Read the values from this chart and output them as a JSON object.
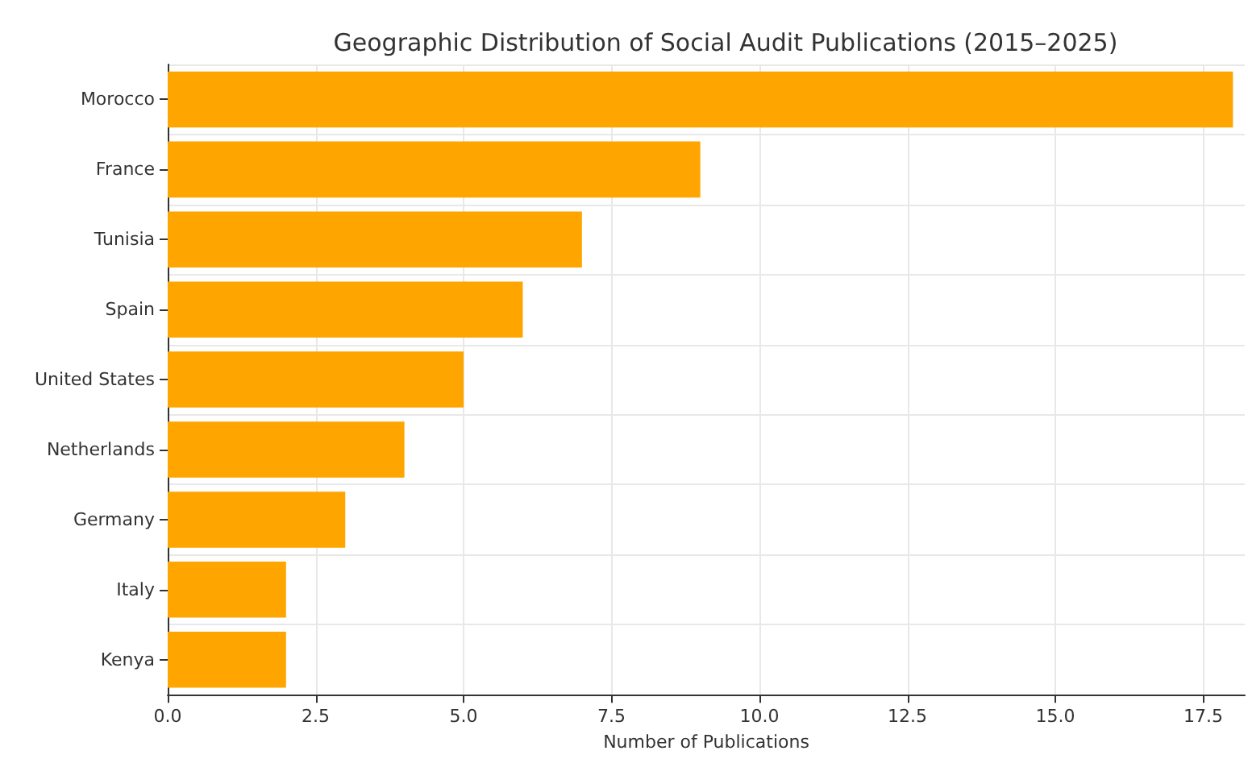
{
  "chart_data": {
    "type": "bar",
    "orientation": "horizontal",
    "title": "Geographic Distribution of Social Audit Publications (2015–2025)",
    "xlabel": "Number of Publications",
    "categories": [
      "Morocco",
      "France",
      "Tunisia",
      "Spain",
      "United States",
      "Netherlands",
      "Germany",
      "Italy",
      "Kenya"
    ],
    "values": [
      18,
      9,
      7,
      6,
      5,
      4,
      3,
      2,
      2
    ],
    "color": "#ffa500",
    "xlim": [
      0,
      18.2
    ],
    "xticks": [
      {
        "value": 0,
        "label": "0.0"
      },
      {
        "value": 2.5,
        "label": "2.5"
      },
      {
        "value": 5,
        "label": "5.0"
      },
      {
        "value": 7.5,
        "label": "7.5"
      },
      {
        "value": 10,
        "label": "10.0"
      },
      {
        "value": 12.5,
        "label": "12.5"
      },
      {
        "value": 15,
        "label": "15.0"
      },
      {
        "value": 17.5,
        "label": "17.5"
      }
    ],
    "grid": true
  }
}
